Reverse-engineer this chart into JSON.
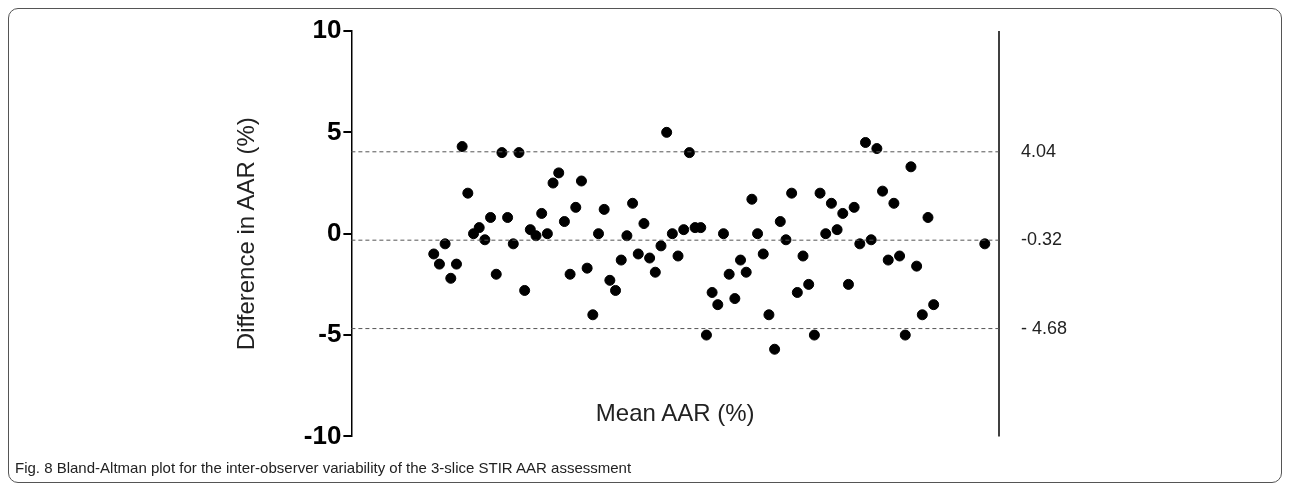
{
  "chart_data": {
    "type": "scatter",
    "xlabel": "Mean AAR (%)",
    "ylabel": "Difference in AAR (%)",
    "annotations": [
      "Fig. 8 Bland-Altman plot for the inter-observer variability of the 3-slice STIR AAR assessment"
    ],
    "categories": [
      null,
      null,
      null,
      null,
      null,
      null,
      null,
      null,
      null,
      null,
      null,
      null,
      null,
      null,
      null,
      null,
      null,
      null,
      null,
      null,
      null,
      null,
      null,
      null,
      null,
      null,
      null,
      null,
      null,
      null,
      null,
      null,
      null,
      null,
      null,
      null,
      null,
      null,
      null,
      null,
      null,
      null,
      null,
      null,
      null,
      null,
      null,
      null,
      null,
      null,
      null,
      null,
      null,
      null,
      null,
      null,
      null,
      null,
      null,
      null,
      null,
      null,
      null,
      null,
      null,
      null,
      null,
      null,
      null,
      null,
      null,
      null,
      null,
      null,
      null,
      null,
      null,
      null,
      null,
      null,
      null,
      null,
      null,
      null,
      null,
      null,
      null,
      null,
      null,
      null,
      null,
      null,
      null,
      null,
      null,
      null,
      null,
      null,
      null,
      null,
      null,
      null,
      null,
      null,
      null,
      null,
      null,
      null,
      null,
      null,
      null,
      null,
      null,
      null
    ],
    "ylim": [
      -10,
      10
    ],
    "yticks": [
      -10,
      -5,
      0,
      5,
      10
    ],
    "tick_labels": "y",
    "marker": "circle",
    "ref_lines": [
      {
        "axis": "y",
        "value": 4.04,
        "label": "4.04",
        "color": "#555555",
        "line_style": "dashed"
      },
      {
        "axis": "y",
        "value": -0.32,
        "label": "-0.32",
        "color": "#555555",
        "line_style": "dashed"
      },
      {
        "axis": "y",
        "value": -4.68,
        "label": "- 4.68",
        "color": "#555555",
        "line_style": "dashed"
      }
    ],
    "series": [
      {
        "color": "#000000",
        "values": [
          null,
          null,
          null,
          null,
          null,
          null,
          null,
          null,
          null,
          null,
          null,
          null,
          null,
          null,
          -1.0,
          -1.5,
          -0.5,
          -2.2,
          -1.5,
          4.3,
          2.0,
          0.0,
          0.3,
          -0.3,
          0.8,
          -2.0,
          4.0,
          0.8,
          -0.5,
          4.0,
          -2.8,
          0.2,
          -0.1,
          1.0,
          0.0,
          2.5,
          3.0,
          0.6,
          -2.0,
          1.3,
          2.6,
          -1.7,
          -4.0,
          0.0,
          1.2,
          -2.3,
          -2.8,
          -1.3,
          -0.1,
          1.5,
          -1.0,
          0.5,
          -1.2,
          -1.9,
          -0.6,
          5.0,
          0.0,
          -1.1,
          0.2,
          4.0,
          0.3,
          0.3,
          -5.0,
          -2.9,
          -3.5,
          0.0,
          -2.0,
          -3.2,
          -1.3,
          -1.9,
          1.7,
          0.0,
          -1.0,
          -4.0,
          -5.7,
          0.6,
          -0.3,
          2.0,
          -2.9,
          -1.1,
          -2.5,
          -5.0,
          2.0,
          0.0,
          1.5,
          0.2,
          1.0,
          -2.5,
          1.3,
          -0.5,
          4.5,
          -0.3,
          4.2,
          2.1,
          -1.3,
          1.5,
          -1.1,
          -5.0,
          3.3,
          -1.6,
          -4.0,
          0.8,
          -3.5,
          null,
          null,
          null,
          null,
          null,
          null,
          null,
          null,
          -0.5,
          null,
          null
        ]
      }
    ]
  }
}
